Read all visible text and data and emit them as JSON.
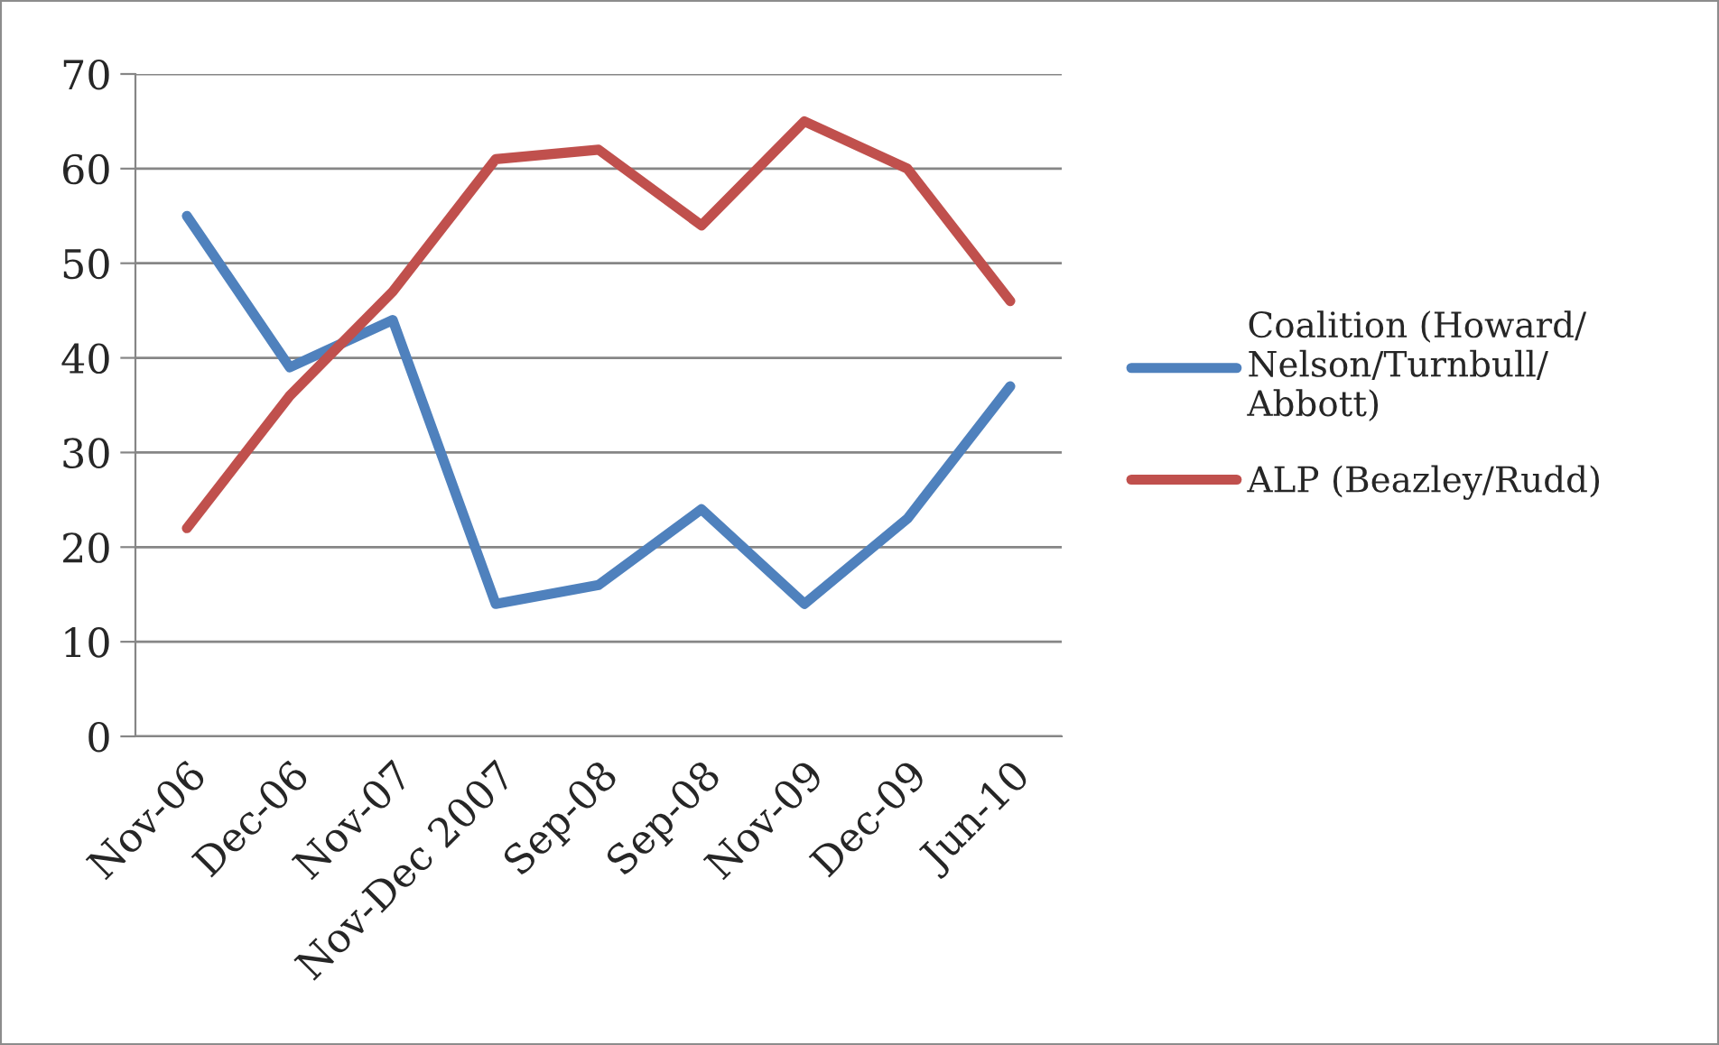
{
  "chart_data": {
    "type": "line",
    "categories": [
      "Nov-06",
      "Dec-06",
      "Nov-07",
      "Nov-Dec 2007",
      "Sep-08",
      "Sep-08",
      "Nov-09",
      "Dec-09",
      "Jun-10"
    ],
    "series": [
      {
        "name": "Coalition (Howard/\nNelson/Turnbull/\nAbbott)",
        "color": "#4f81bd",
        "values": [
          55,
          39,
          44,
          14,
          16,
          24,
          14,
          23,
          37
        ]
      },
      {
        "name": "ALP (Beazley/Rudd)",
        "color": "#c0504d",
        "values": [
          22,
          36,
          47,
          61,
          62,
          54,
          65,
          60,
          46
        ]
      }
    ],
    "ylim": [
      0,
      70
    ],
    "yticks": [
      0,
      10,
      20,
      30,
      40,
      50,
      60,
      70
    ],
    "grid": "y",
    "legend": "right",
    "marker": "none",
    "line_style": "solid"
  }
}
